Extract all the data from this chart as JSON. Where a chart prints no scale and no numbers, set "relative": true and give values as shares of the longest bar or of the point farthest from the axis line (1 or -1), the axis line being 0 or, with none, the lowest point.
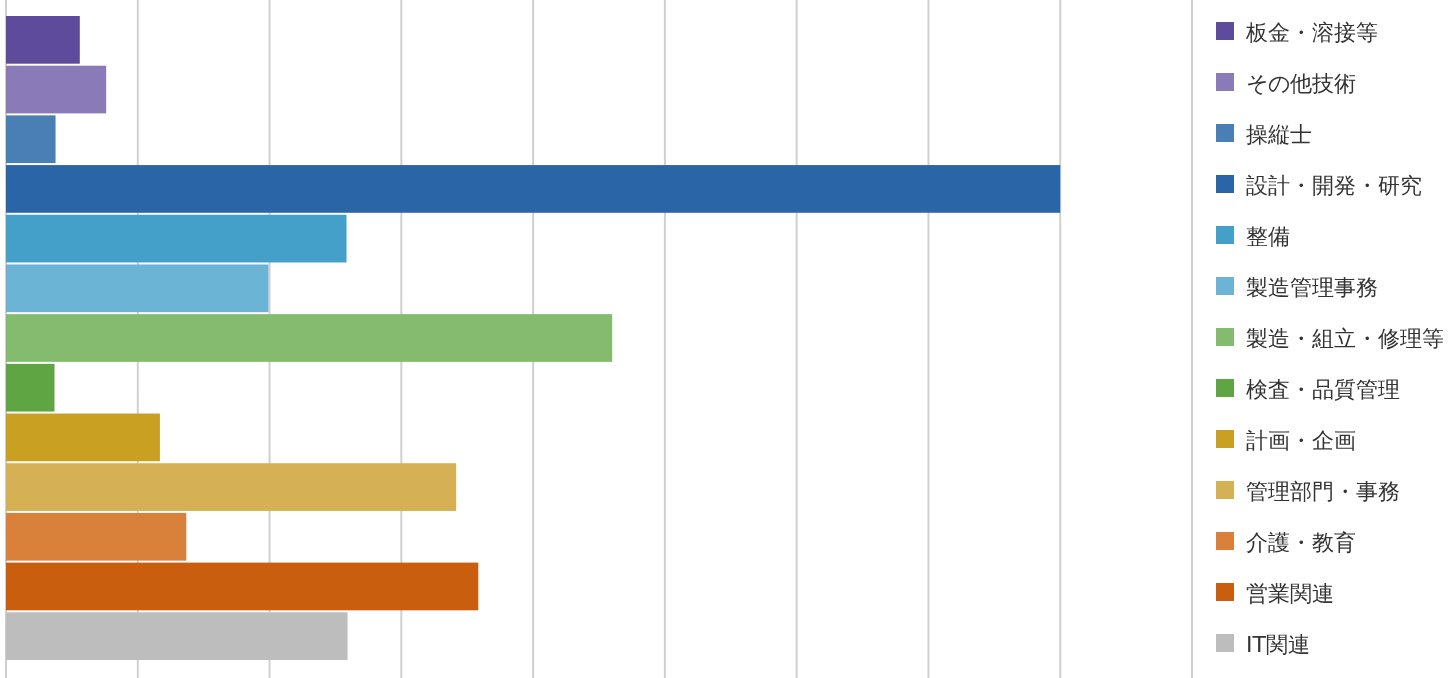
{
  "chart_data": {
    "type": "bar",
    "orientation": "horizontal",
    "relative": true,
    "stacked": true,
    "grid": "x",
    "legend": "right",
    "categories": [
      null,
      null,
      null,
      null,
      null,
      null,
      null,
      null,
      null,
      null,
      null,
      null,
      null
    ],
    "series": [
      {
        "name": "板金・溶接等",
        "color": "#5f4b9b",
        "values": [
          0.07,
          null,
          null,
          null,
          null,
          null,
          null,
          null,
          null,
          null,
          null,
          null,
          null
        ]
      },
      {
        "name": "その他技術",
        "color": "#8a7ab8",
        "values": [
          null,
          0.095,
          null,
          null,
          null,
          null,
          null,
          null,
          null,
          null,
          null,
          null,
          null
        ]
      },
      {
        "name": "操縦士",
        "color": "#4a7fb5",
        "values": [
          null,
          null,
          0.047,
          null,
          null,
          null,
          null,
          null,
          null,
          null,
          null,
          null,
          null
        ]
      },
      {
        "name": "設計・開発・研究",
        "color": "#2a65a8",
        "values": [
          null,
          null,
          null,
          1,
          null,
          null,
          null,
          null,
          null,
          null,
          null,
          null,
          null
        ]
      },
      {
        "name": "整備",
        "color": "#44a0c8",
        "values": [
          null,
          null,
          null,
          null,
          0.323,
          null,
          null,
          null,
          null,
          null,
          null,
          null,
          null
        ]
      },
      {
        "name": "製造管理事務",
        "color": "#6bb4d6",
        "values": [
          null,
          null,
          null,
          null,
          null,
          0.249,
          null,
          null,
          null,
          null,
          null,
          null,
          null
        ]
      },
      {
        "name": "製造・組立・修理等",
        "color": "#84bb6e",
        "values": [
          null,
          null,
          null,
          null,
          null,
          null,
          0.575,
          null,
          null,
          null,
          null,
          null,
          null
        ]
      },
      {
        "name": "検査・品質管理",
        "color": "#5fa544",
        "values": [
          null,
          null,
          null,
          null,
          null,
          null,
          null,
          0.046,
          null,
          null,
          null,
          null,
          null
        ]
      },
      {
        "name": "計画・企画",
        "color": "#c9a022",
        "values": [
          null,
          null,
          null,
          null,
          null,
          null,
          null,
          null,
          0.146,
          null,
          null,
          null,
          null
        ]
      },
      {
        "name": "管理部門・事務",
        "color": "#d5b055",
        "values": [
          null,
          null,
          null,
          null,
          null,
          null,
          null,
          null,
          null,
          0.427,
          null,
          null,
          null
        ]
      },
      {
        "name": "介護・教育",
        "color": "#d9803a",
        "values": [
          null,
          null,
          null,
          null,
          null,
          null,
          null,
          null,
          null,
          null,
          0.171,
          null,
          null
        ]
      },
      {
        "name": "営業関連",
        "color": "#c95f0e",
        "values": [
          null,
          null,
          null,
          null,
          null,
          null,
          null,
          null,
          null,
          null,
          null,
          0.448,
          null
        ]
      },
      {
        "name": "IT関連",
        "color": "#bdbdbd",
        "values": [
          null,
          null,
          null,
          null,
          null,
          null,
          null,
          null,
          null,
          null,
          null,
          null,
          0.324
        ]
      }
    ]
  }
}
